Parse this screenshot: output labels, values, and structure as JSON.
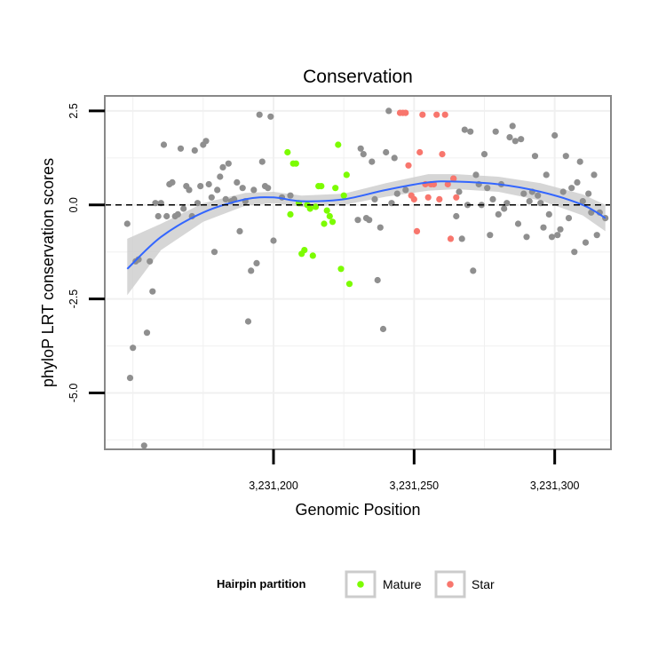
{
  "chart_data": {
    "type": "scatter",
    "title": "Conservation",
    "xlabel": "Genomic Position",
    "ylabel": "phyloP LRT conservation scores",
    "xlim": [
      3231140,
      3231320
    ],
    "ylim": [
      -6.5,
      2.9
    ],
    "x_ticks": [
      3231200,
      3231250,
      3231300
    ],
    "x_tick_labels": [
      "3,231,200",
      "3,231,250",
      "3,231,300"
    ],
    "y_ticks": [
      2.5,
      0.0,
      -2.5,
      -5.0
    ],
    "y_tick_labels": [
      "2.5",
      "0.0",
      "-2.5",
      "-5.0"
    ],
    "reference_line": {
      "y": 0,
      "style": "dashed"
    },
    "grid": true,
    "legend": {
      "title": "Hairpin partition",
      "position": "bottom",
      "entries": [
        {
          "label": "Mature",
          "color": "#7CFC00"
        },
        {
          "label": "Star",
          "color": "#F8766D"
        }
      ]
    },
    "colors": {
      "other": "#8f8f8f",
      "mature": "#7CFC00",
      "star": "#F8766D",
      "smooth": "#3366FF",
      "band": "#cccccc"
    },
    "series": [
      {
        "group": "other",
        "points": [
          [
            3231148,
            -0.5
          ],
          [
            3231149,
            -4.6
          ],
          [
            3231150,
            -3.8
          ],
          [
            3231151,
            -1.5
          ],
          [
            3231152,
            -1.45
          ],
          [
            3231154,
            -6.4
          ],
          [
            3231155,
            -3.4
          ],
          [
            3231156,
            -1.5
          ],
          [
            3231157,
            -2.3
          ],
          [
            3231158,
            0.05
          ],
          [
            3231159,
            -0.3
          ],
          [
            3231160,
            0.05
          ],
          [
            3231161,
            1.6
          ],
          [
            3231162,
            -0.3
          ],
          [
            3231163,
            0.55
          ],
          [
            3231164,
            0.6
          ],
          [
            3231165,
            -0.3
          ],
          [
            3231166,
            -0.25
          ],
          [
            3231167,
            1.5
          ],
          [
            3231168,
            -0.1
          ],
          [
            3231169,
            0.5
          ],
          [
            3231170,
            0.4
          ],
          [
            3231171,
            -0.3
          ],
          [
            3231172,
            1.45
          ],
          [
            3231173,
            0.05
          ],
          [
            3231174,
            0.5
          ],
          [
            3231175,
            1.6
          ],
          [
            3231176,
            1.7
          ],
          [
            3231177,
            0.55
          ],
          [
            3231178,
            0.2
          ],
          [
            3231179,
            -1.25
          ],
          [
            3231180,
            0.4
          ],
          [
            3231181,
            0.75
          ],
          [
            3231182,
            1.0
          ],
          [
            3231183,
            0.15
          ],
          [
            3231184,
            1.1
          ],
          [
            3231185,
            0.1
          ],
          [
            3231186,
            0.15
          ],
          [
            3231187,
            0.6
          ],
          [
            3231188,
            -0.7
          ],
          [
            3231189,
            0.45
          ],
          [
            3231190,
            0.1
          ],
          [
            3231191,
            -3.1
          ],
          [
            3231192,
            -1.75
          ],
          [
            3231193,
            0.4
          ],
          [
            3231194,
            -1.55
          ],
          [
            3231195,
            2.4
          ],
          [
            3231196,
            1.15
          ],
          [
            3231197,
            0.5
          ],
          [
            3231198,
            0.45
          ],
          [
            3231199,
            2.35
          ],
          [
            3231200,
            -0.95
          ],
          [
            3231203,
            0.2
          ],
          [
            3231206,
            0.25
          ],
          [
            3231230,
            -0.4
          ],
          [
            3231231,
            1.5
          ],
          [
            3231232,
            1.35
          ],
          [
            3231233,
            -0.35
          ],
          [
            3231234,
            -0.4
          ],
          [
            3231235,
            1.15
          ],
          [
            3231236,
            0.15
          ],
          [
            3231237,
            -2.0
          ],
          [
            3231238,
            -0.6
          ],
          [
            3231239,
            -3.3
          ],
          [
            3231240,
            1.4
          ],
          [
            3231241,
            2.5
          ],
          [
            3231242,
            0.05
          ],
          [
            3231243,
            1.25
          ],
          [
            3231244,
            0.3
          ],
          [
            3231247,
            0.4
          ],
          [
            3231264,
            0.7
          ],
          [
            3231265,
            -0.3
          ],
          [
            3231266,
            0.35
          ],
          [
            3231267,
            -0.9
          ],
          [
            3231268,
            2.0
          ],
          [
            3231269,
            0.0
          ],
          [
            3231270,
            1.95
          ],
          [
            3231271,
            -1.75
          ],
          [
            3231272,
            0.8
          ],
          [
            3231273,
            0.55
          ],
          [
            3231274,
            0.0
          ],
          [
            3231275,
            1.35
          ],
          [
            3231276,
            0.45
          ],
          [
            3231277,
            -0.8
          ],
          [
            3231278,
            0.15
          ],
          [
            3231279,
            1.95
          ],
          [
            3231280,
            -0.25
          ],
          [
            3231281,
            0.55
          ],
          [
            3231282,
            -0.1
          ],
          [
            3231283,
            0.05
          ],
          [
            3231284,
            1.8
          ],
          [
            3231285,
            2.1
          ],
          [
            3231286,
            1.7
          ],
          [
            3231287,
            -0.5
          ],
          [
            3231288,
            1.75
          ],
          [
            3231289,
            0.3
          ],
          [
            3231290,
            -0.85
          ],
          [
            3231291,
            0.1
          ],
          [
            3231292,
            0.35
          ],
          [
            3231293,
            1.3
          ],
          [
            3231294,
            0.25
          ],
          [
            3231295,
            0.05
          ],
          [
            3231296,
            -0.6
          ],
          [
            3231297,
            0.8
          ],
          [
            3231298,
            -0.25
          ],
          [
            3231299,
            -0.85
          ],
          [
            3231300,
            1.85
          ],
          [
            3231301,
            -0.8
          ],
          [
            3231302,
            -0.65
          ],
          [
            3231303,
            0.35
          ],
          [
            3231304,
            1.3
          ],
          [
            3231305,
            -0.35
          ],
          [
            3231306,
            0.45
          ],
          [
            3231307,
            -1.25
          ],
          [
            3231308,
            0.6
          ],
          [
            3231309,
            1.15
          ],
          [
            3231310,
            0.1
          ],
          [
            3231311,
            -1.0
          ],
          [
            3231312,
            0.3
          ],
          [
            3231313,
            -0.2
          ],
          [
            3231314,
            0.8
          ],
          [
            3231315,
            -0.8
          ],
          [
            3231316,
            -0.2
          ],
          [
            3231318,
            -0.35
          ]
        ]
      },
      {
        "group": "mature",
        "name": "Mature",
        "points": [
          [
            3231205,
            1.4
          ],
          [
            3231206,
            -0.25
          ],
          [
            3231207,
            1.1
          ],
          [
            3231208,
            1.1
          ],
          [
            3231209,
            0.05
          ],
          [
            3231210,
            -1.3
          ],
          [
            3231211,
            -1.2
          ],
          [
            3231212,
            0.0
          ],
          [
            3231213,
            -0.1
          ],
          [
            3231214,
            -1.35
          ],
          [
            3231215,
            -0.05
          ],
          [
            3231216,
            0.5
          ],
          [
            3231217,
            0.5
          ],
          [
            3231218,
            -0.5
          ],
          [
            3231219,
            -0.15
          ],
          [
            3231220,
            -0.3
          ],
          [
            3231221,
            -0.45
          ],
          [
            3231222,
            0.45
          ],
          [
            3231223,
            1.6
          ],
          [
            3231224,
            -1.7
          ],
          [
            3231225,
            0.25
          ],
          [
            3231226,
            0.8
          ],
          [
            3231227,
            -2.1
          ]
        ]
      },
      {
        "group": "star",
        "name": "Star",
        "points": [
          [
            3231245,
            2.45
          ],
          [
            3231246,
            2.45
          ],
          [
            3231247,
            2.45
          ],
          [
            3231248,
            1.05
          ],
          [
            3231249,
            0.25
          ],
          [
            3231250,
            0.15
          ],
          [
            3231251,
            -0.7
          ],
          [
            3231252,
            1.4
          ],
          [
            3231253,
            2.4
          ],
          [
            3231254,
            0.55
          ],
          [
            3231255,
            0.2
          ],
          [
            3231256,
            0.55
          ],
          [
            3231257,
            0.55
          ],
          [
            3231258,
            2.4
          ],
          [
            3231259,
            0.15
          ],
          [
            3231260,
            1.35
          ],
          [
            3231261,
            2.4
          ],
          [
            3231262,
            0.55
          ],
          [
            3231263,
            -0.9
          ],
          [
            3231264,
            0.7
          ],
          [
            3231265,
            0.2
          ]
        ]
      }
    ],
    "smooth": {
      "x": [
        3231148,
        3231160,
        3231175,
        3231190,
        3231200,
        3231210,
        3231225,
        3231240,
        3231255,
        3231265,
        3231280,
        3231295,
        3231310,
        3231318
      ],
      "y": [
        -1.7,
        -0.85,
        -0.2,
        0.15,
        0.2,
        0.1,
        0.15,
        0.4,
        0.6,
        0.62,
        0.55,
        0.35,
        0.0,
        -0.35
      ],
      "lower": [
        -2.4,
        -1.2,
        -0.45,
        -0.02,
        0.05,
        -0.05,
        0.0,
        0.22,
        0.38,
        0.42,
        0.35,
        0.12,
        -0.28,
        -0.7
      ],
      "upper": [
        -0.9,
        -0.5,
        0.05,
        0.32,
        0.35,
        0.25,
        0.3,
        0.58,
        0.82,
        0.82,
        0.75,
        0.58,
        0.28,
        0.0
      ]
    }
  }
}
